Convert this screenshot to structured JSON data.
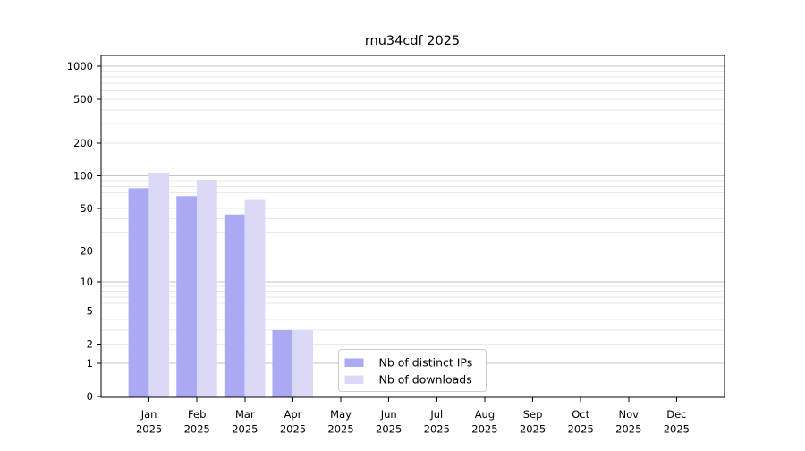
{
  "chart_data": {
    "type": "bar",
    "title": "rnu34cdf 2025",
    "categories": [
      "Jan",
      "Feb",
      "Mar",
      "Apr",
      "May",
      "Jun",
      "Jul",
      "Aug",
      "Sep",
      "Oct",
      "Nov",
      "Dec"
    ],
    "year": "2025",
    "series": [
      {
        "name": "Nb of distinct IPs",
        "color": "#aaaaf4",
        "values": [
          77,
          65,
          44,
          3,
          0,
          0,
          0,
          0,
          0,
          0,
          0,
          0
        ]
      },
      {
        "name": "Nb of downloads",
        "color": "#dadaf6",
        "values": [
          107,
          92,
          61,
          3,
          0,
          0,
          0,
          0,
          0,
          0,
          0,
          0
        ]
      }
    ],
    "yscale": "log1p",
    "ylim": [
      0,
      1254
    ],
    "yticks": [
      0,
      1,
      2,
      5,
      10,
      20,
      50,
      100,
      200,
      500,
      1000
    ],
    "grid": {
      "major_at": [
        1,
        10,
        100,
        1000
      ],
      "major_color": "#c3c3c3",
      "minor_color": "#e9e9e9"
    },
    "axis_color": "#000000",
    "legend": {
      "entries": [
        "Nb of distinct IPs",
        "Nb of downloads"
      ],
      "border_color": "#cccccc",
      "background": "#ffffff"
    }
  }
}
